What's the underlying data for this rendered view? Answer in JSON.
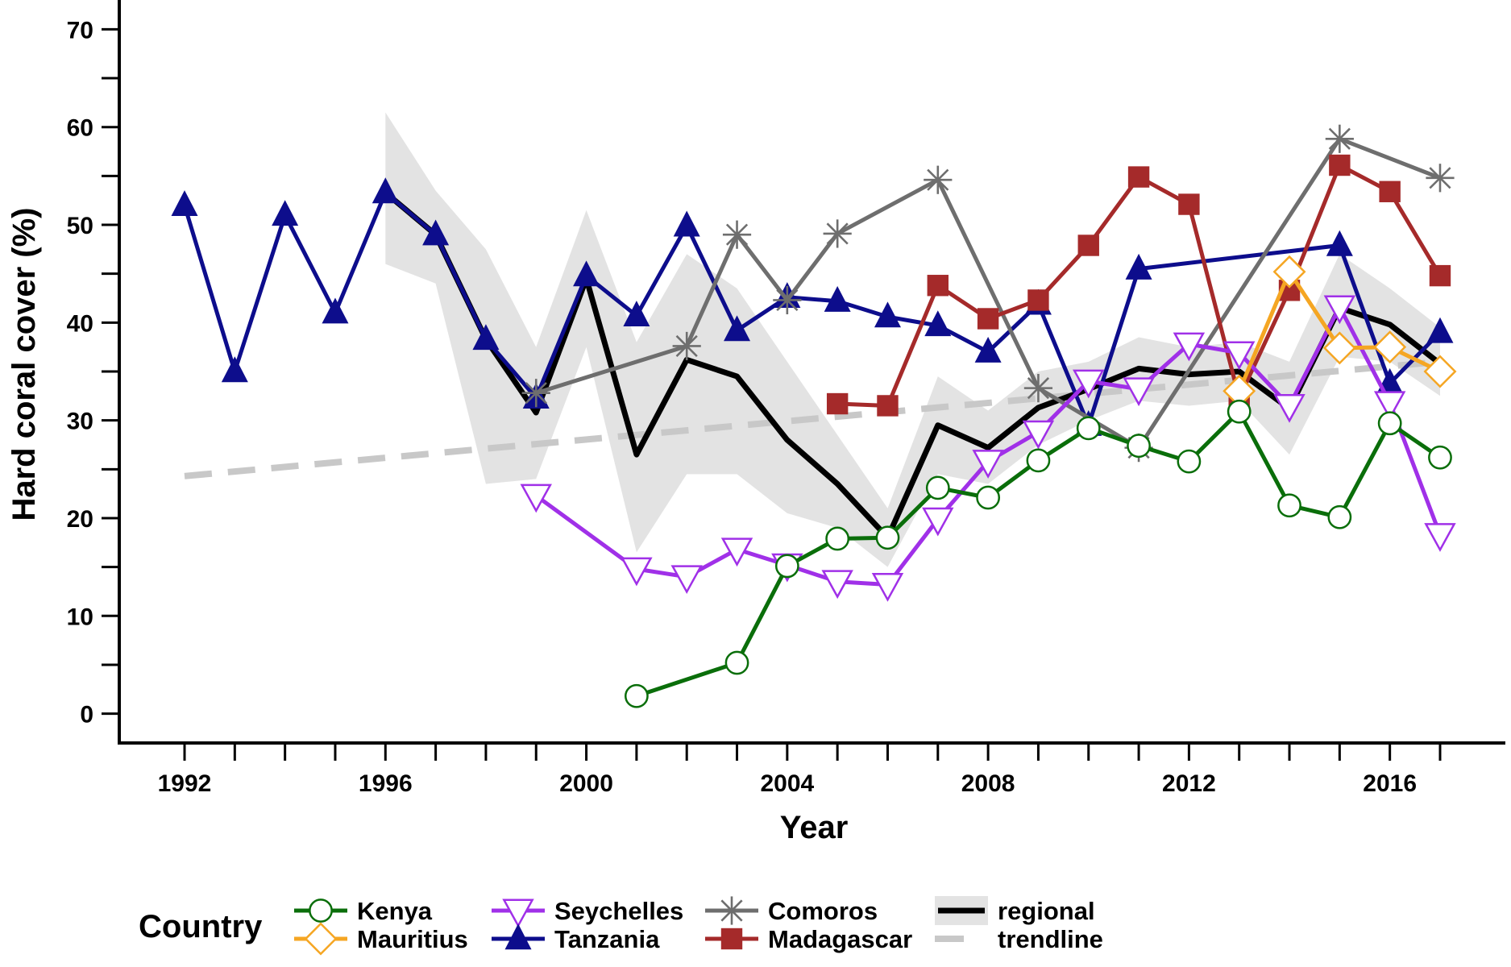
{
  "chart_data": {
    "type": "line",
    "title": "",
    "xlabel": "Year",
    "ylabel": "Hard coral cover (%)",
    "xlim": [
      1990.7,
      2018.3
    ],
    "ylim": [
      -3,
      73
    ],
    "x_ticks": [
      1992,
      1996,
      2000,
      2004,
      2008,
      2012,
      2016
    ],
    "x_ticks_minor": [
      1993,
      1994,
      1995,
      1997,
      1998,
      1999,
      2001,
      2002,
      2003,
      2005,
      2006,
      2007,
      2009,
      2010,
      2011,
      2013,
      2014,
      2015,
      2017
    ],
    "y_ticks": [
      0,
      10,
      20,
      30,
      40,
      50,
      60,
      70
    ],
    "grid": false,
    "legend": {
      "placement": "bottom",
      "title": "Country"
    },
    "regional": {
      "name": "regional",
      "color": "#000000",
      "band_color": "#e3e3e3",
      "points": [
        [
          1996,
          53.3
        ],
        [
          1997,
          49
        ],
        [
          1998,
          38.3
        ],
        [
          1999,
          30.8
        ],
        [
          2000,
          44.5
        ],
        [
          2001,
          26.5
        ],
        [
          2002,
          36.2
        ],
        [
          2003,
          34.5
        ],
        [
          2004,
          28
        ],
        [
          2005,
          23.5
        ],
        [
          2006,
          18
        ],
        [
          2007,
          29.5
        ],
        [
          2008,
          27.2
        ],
        [
          2009,
          31.3
        ],
        [
          2010,
          33.2
        ],
        [
          2011,
          35.3
        ],
        [
          2012,
          34.7
        ],
        [
          2013,
          35
        ],
        [
          2014,
          31.2
        ],
        [
          2015,
          41.5
        ],
        [
          2016,
          39.8
        ],
        [
          2017,
          35.8
        ]
      ],
      "band_upper": [
        [
          1996,
          61.5
        ],
        [
          1997,
          53.5
        ],
        [
          1998,
          47.5
        ],
        [
          1999,
          37.5
        ],
        [
          2000,
          51.5
        ],
        [
          2001,
          38
        ],
        [
          2002,
          47
        ],
        [
          2003,
          43.5
        ],
        [
          2004,
          36
        ],
        [
          2005,
          28.5
        ],
        [
          2006,
          21
        ],
        [
          2007,
          34.5
        ],
        [
          2008,
          31
        ],
        [
          2009,
          35
        ],
        [
          2010,
          36
        ],
        [
          2011,
          38.5
        ],
        [
          2012,
          37.5
        ],
        [
          2013,
          38
        ],
        [
          2014,
          36
        ],
        [
          2015,
          47
        ],
        [
          2016,
          43.5
        ],
        [
          2017,
          39.5
        ]
      ],
      "band_lower": [
        [
          1996,
          46
        ],
        [
          1997,
          44
        ],
        [
          1998,
          23.5
        ],
        [
          1999,
          24
        ],
        [
          2000,
          37.5
        ],
        [
          2001,
          16.5
        ],
        [
          2002,
          24.5
        ],
        [
          2003,
          24.5
        ],
        [
          2004,
          20.5
        ],
        [
          2005,
          19
        ],
        [
          2006,
          15
        ],
        [
          2007,
          24.5
        ],
        [
          2008,
          23.5
        ],
        [
          2009,
          27.5
        ],
        [
          2010,
          30
        ],
        [
          2011,
          32
        ],
        [
          2012,
          31.5
        ],
        [
          2013,
          32
        ],
        [
          2014,
          26.5
        ],
        [
          2015,
          36.5
        ],
        [
          2016,
          36
        ],
        [
          2017,
          32.5
        ]
      ]
    },
    "trendline": {
      "name": "trendline",
      "color": "#c8c8c8",
      "points": [
        [
          1992,
          24.3
        ],
        [
          2017,
          36
        ]
      ]
    },
    "series": [
      {
        "name": "Tanzania",
        "color": "#0d0d8c",
        "marker": "triangle-up",
        "points": [
          [
            1992,
            52
          ],
          [
            1993,
            35
          ],
          [
            1994,
            51
          ],
          [
            1995,
            41
          ],
          [
            1996,
            53.3
          ],
          [
            1997,
            49
          ],
          [
            1998,
            38.3
          ],
          [
            1999,
            32.3
          ],
          [
            2000,
            44.8
          ],
          [
            2001,
            40.7
          ],
          [
            2002,
            49.9
          ],
          [
            2003,
            39.2
          ],
          [
            2004,
            42.6
          ],
          [
            2005,
            42.2
          ],
          [
            2006,
            40.6
          ],
          [
            2007,
            39.7
          ],
          [
            2008,
            37
          ],
          [
            2009,
            41.9
          ],
          [
            2010,
            29.5
          ],
          [
            2011,
            45.5
          ],
          [
            2015,
            47.9
          ],
          [
            2016,
            33.8
          ],
          [
            2017,
            39
          ]
        ]
      },
      {
        "name": "Comoros",
        "color": "#6e6e6e",
        "marker": "asterisk",
        "points": [
          [
            1999,
            32.8
          ],
          [
            2002,
            37.6
          ],
          [
            2003,
            49
          ],
          [
            2004,
            42.3
          ],
          [
            2005,
            49.1
          ],
          [
            2007,
            54.6
          ],
          [
            2009,
            33.3
          ],
          [
            2011,
            27.2
          ],
          [
            2015,
            58.8
          ],
          [
            2017,
            54.8
          ]
        ]
      },
      {
        "name": "Madagascar",
        "color": "#a52a2a",
        "marker": "square",
        "points": [
          [
            2005,
            31.7
          ],
          [
            2006,
            31.5
          ],
          [
            2007,
            43.8
          ],
          [
            2008,
            40.4
          ],
          [
            2009,
            42.3
          ],
          [
            2010,
            47.9
          ],
          [
            2011,
            54.9
          ],
          [
            2012,
            52.1
          ],
          [
            2013,
            32.3
          ],
          [
            2014,
            43.3
          ],
          [
            2015,
            56.1
          ],
          [
            2016,
            53.4
          ],
          [
            2017,
            44.8
          ]
        ]
      },
      {
        "name": "Seychelles",
        "color": "#a030e8",
        "marker": "triangle-down",
        "points": [
          [
            1999,
            22.3
          ],
          [
            2001,
            14.8
          ],
          [
            2002,
            14
          ],
          [
            2003,
            16.8
          ],
          [
            2004,
            15.2
          ],
          [
            2005,
            13.5
          ],
          [
            2006,
            13.2
          ],
          [
            2007,
            19.9
          ],
          [
            2008,
            25.8
          ],
          [
            2009,
            28.8
          ],
          [
            2010,
            34
          ],
          [
            2011,
            33.2
          ],
          [
            2012,
            37.8
          ],
          [
            2013,
            36.9
          ],
          [
            2014,
            31.5
          ],
          [
            2015,
            41.6
          ],
          [
            2016,
            31.8
          ],
          [
            2017,
            18.3
          ]
        ]
      },
      {
        "name": "Mauritius",
        "color": "#f5a623",
        "marker": "diamond",
        "points": [
          [
            2013,
            33
          ],
          [
            2014,
            45.2
          ],
          [
            2015,
            37.4
          ],
          [
            2016,
            37.5
          ],
          [
            2017,
            35
          ]
        ]
      },
      {
        "name": "Kenya",
        "color": "#0a6e0a",
        "marker": "circle",
        "points": [
          [
            2001,
            1.8
          ],
          [
            2003,
            5.2
          ],
          [
            2004,
            15.1
          ],
          [
            2005,
            17.9
          ],
          [
            2006,
            18
          ],
          [
            2007,
            23.1
          ],
          [
            2008,
            22.1
          ],
          [
            2009,
            25.9
          ],
          [
            2010,
            29.2
          ],
          [
            2011,
            27.4
          ],
          [
            2012,
            25.8
          ],
          [
            2013,
            30.9
          ],
          [
            2014,
            21.3
          ],
          [
            2015,
            20.1
          ],
          [
            2016,
            29.7
          ],
          [
            2017,
            26.2
          ]
        ]
      }
    ]
  }
}
